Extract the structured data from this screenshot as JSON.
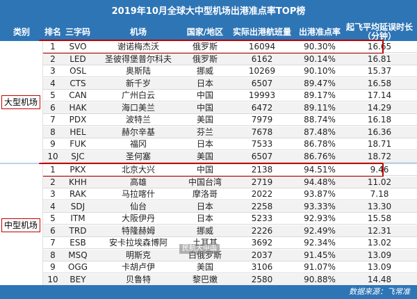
{
  "title": "2019年10月全球大中型机场出港准点率TOP榜",
  "columns": {
    "category": "类别",
    "rank": "排名",
    "code": "三字码",
    "airport": "机场",
    "country": "国家/地区",
    "flights": "实际出港航班量",
    "ontime": "出港准点率",
    "delay_line1": "起飞平均延误时长",
    "delay_line2": "（分钟）"
  },
  "groups": [
    {
      "category": "大型机场",
      "rows": [
        {
          "rank": "1",
          "code": "SVO",
          "airport": "谢诺梅杰沃",
          "country": "俄罗斯",
          "flights": "16094",
          "ontime": "90.30%",
          "delay": "16.65",
          "highlight": true
        },
        {
          "rank": "2",
          "code": "LED",
          "airport": "圣彼得堡普尔科夫",
          "country": "俄罗斯",
          "flights": "6162",
          "ontime": "90.14%",
          "delay": "16.81"
        },
        {
          "rank": "3",
          "code": "OSL",
          "airport": "奥斯陆",
          "country": "挪威",
          "flights": "10269",
          "ontime": "90.10%",
          "delay": "15.37"
        },
        {
          "rank": "4",
          "code": "CTS",
          "airport": "新千岁",
          "country": "日本",
          "flights": "6507",
          "ontime": "89.47%",
          "delay": "16.58"
        },
        {
          "rank": "5",
          "code": "CAN",
          "airport": "广州白云",
          "country": "中国",
          "flights": "19993",
          "ontime": "89.17%",
          "delay": "17.14"
        },
        {
          "rank": "6",
          "code": "HAK",
          "airport": "海口美兰",
          "country": "中国",
          "flights": "6472",
          "ontime": "89.11%",
          "delay": "14.29"
        },
        {
          "rank": "7",
          "code": "PDX",
          "airport": "波特兰",
          "country": "美国",
          "flights": "7979",
          "ontime": "88.74%",
          "delay": "16.18"
        },
        {
          "rank": "8",
          "code": "HEL",
          "airport": "赫尔辛基",
          "country": "芬兰",
          "flights": "7678",
          "ontime": "87.48%",
          "delay": "16.36"
        },
        {
          "rank": "9",
          "code": "FUK",
          "airport": "福冈",
          "country": "日本",
          "flights": "7533",
          "ontime": "86.78%",
          "delay": "18.71"
        },
        {
          "rank": "10",
          "code": "SJC",
          "airport": "圣何塞",
          "country": "美国",
          "flights": "6507",
          "ontime": "86.76%",
          "delay": "18.72"
        }
      ]
    },
    {
      "category": "中型机场",
      "rows": [
        {
          "rank": "1",
          "code": "PKX",
          "airport": "北京大兴",
          "country": "中国",
          "flights": "2138",
          "ontime": "94.51%",
          "delay": "9.46",
          "highlight": true
        },
        {
          "rank": "2",
          "code": "KHH",
          "airport": "高雄",
          "country": "中国台湾",
          "flights": "2719",
          "ontime": "94.48%",
          "delay": "11.02"
        },
        {
          "rank": "3",
          "code": "RAK",
          "airport": "马拉喀什",
          "country": "摩洛哥",
          "flights": "2022",
          "ontime": "93.87%",
          "delay": "7.18"
        },
        {
          "rank": "4",
          "code": "SDJ",
          "airport": "仙台",
          "country": "日本",
          "flights": "2258",
          "ontime": "93.33%",
          "delay": "13.30"
        },
        {
          "rank": "5",
          "code": "ITM",
          "airport": "大阪伊丹",
          "country": "日本",
          "flights": "5233",
          "ontime": "92.93%",
          "delay": "15.58"
        },
        {
          "rank": "6",
          "code": "TRD",
          "airport": "特隆赫姆",
          "country": "挪威",
          "flights": "2226",
          "ontime": "92.49%",
          "delay": "12.31"
        },
        {
          "rank": "7",
          "code": "ESB",
          "airport": "安卡拉埃森博阿",
          "country": "土耳其",
          "flights": "3692",
          "ontime": "92.34%",
          "delay": "13.02"
        },
        {
          "rank": "8",
          "code": "MSQ",
          "airport": "明斯克",
          "country": "白俄罗斯",
          "flights": "2037",
          "ontime": "91.45%",
          "delay": "13.09"
        },
        {
          "rank": "9",
          "code": "OGG",
          "airport": "卡胡卢伊",
          "country": "美国",
          "flights": "3106",
          "ontime": "91.07%",
          "delay": "13.09"
        },
        {
          "rank": "10",
          "code": "BEY",
          "airport": "贝鲁特",
          "country": "黎巴嫩",
          "flights": "2580",
          "ontime": "90.88%",
          "delay": "14.48"
        }
      ]
    }
  ],
  "watermark": "民航大中国",
  "source": "数据来源：飞常准",
  "colors": {
    "header": "#2e75b6",
    "highlight": "#c00000"
  }
}
